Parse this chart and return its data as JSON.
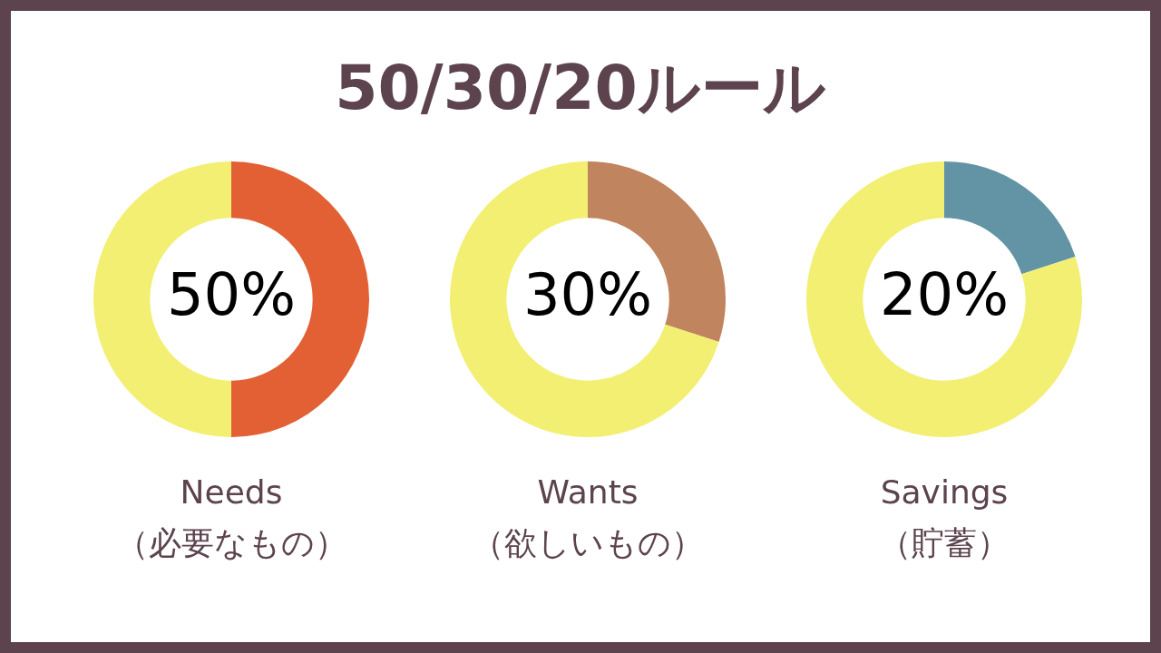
{
  "chart_data": [
    {
      "type": "donut",
      "xlabel": "Needs\n（必要なもの）",
      "categories": [
        null,
        null
      ],
      "values": [
        50,
        50
      ],
      "colors": [
        "#e26034",
        "#f2ef72"
      ],
      "value_labels": [
        "50%",
        null
      ]
    },
    {
      "type": "donut",
      "title": "50/30/20ルール",
      "xlabel": "Wants\n（欲しいもの）",
      "categories": [
        null,
        null
      ],
      "values": [
        30,
        70
      ],
      "colors": [
        "#c0845e",
        "#f2ef72"
      ],
      "value_labels": [
        "30%",
        null
      ]
    },
    {
      "type": "donut",
      "xlabel": "Savings\n（貯蓄）",
      "categories": [
        null,
        null
      ],
      "values": [
        20,
        80
      ],
      "colors": [
        "#6394a5",
        "#f2ef72"
      ],
      "value_labels": [
        "20%",
        null
      ]
    }
  ]
}
